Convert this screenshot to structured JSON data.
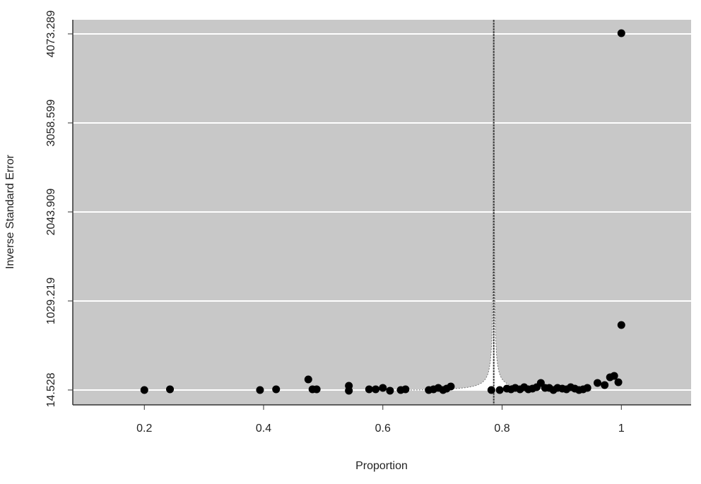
{
  "chart_data": {
    "type": "scatter",
    "x_label": "Proportion",
    "y_label": "Inverse Standard Error",
    "xlim": [
      0.08,
      1.117
    ],
    "ylim": [
      -155,
      4234
    ],
    "xticks": [
      0.2,
      0.4,
      0.6,
      0.8,
      1
    ],
    "yticks": [
      14.528,
      1029.219,
      2043.909,
      3058.599,
      4073.289
    ],
    "grid": true,
    "background": "#c8c8c8",
    "color": "#000000",
    "reference_line": 0.786,
    "x": [
      0.2,
      0.243,
      0.394,
      0.421,
      0.475,
      0.482,
      0.489,
      0.543,
      0.543,
      0.577,
      0.588,
      0.6,
      0.612,
      0.63,
      0.638,
      0.677,
      0.685,
      0.693,
      0.701,
      0.707,
      0.714,
      0.782,
      0.796,
      0.808,
      0.815,
      0.822,
      0.83,
      0.837,
      0.844,
      0.851,
      0.858,
      0.865,
      0.872,
      0.879,
      0.886,
      0.893,
      0.901,
      0.908,
      0.915,
      0.922,
      0.929,
      0.936,
      0.943,
      0.96,
      0.972,
      0.981,
      0.988,
      0.995,
      1.0,
      1.0
    ],
    "values": [
      14.5,
      22.6,
      14.5,
      22.6,
      135.3,
      22.6,
      22.6,
      62.8,
      6.5,
      22.6,
      22.6,
      38.7,
      6.5,
      14.5,
      22.6,
      14.5,
      22.6,
      38.7,
      14.5,
      30.6,
      54.8,
      14.5,
      14.5,
      30.6,
      22.6,
      38.7,
      22.6,
      46.7,
      22.6,
      30.6,
      46.7,
      95.1,
      38.7,
      38.7,
      14.5,
      38.7,
      30.6,
      22.6,
      46.7,
      30.6,
      14.5,
      22.6,
      38.7,
      95.1,
      70.9,
      159.5,
      175.6,
      103.1,
      755.4,
      4081
    ]
  }
}
